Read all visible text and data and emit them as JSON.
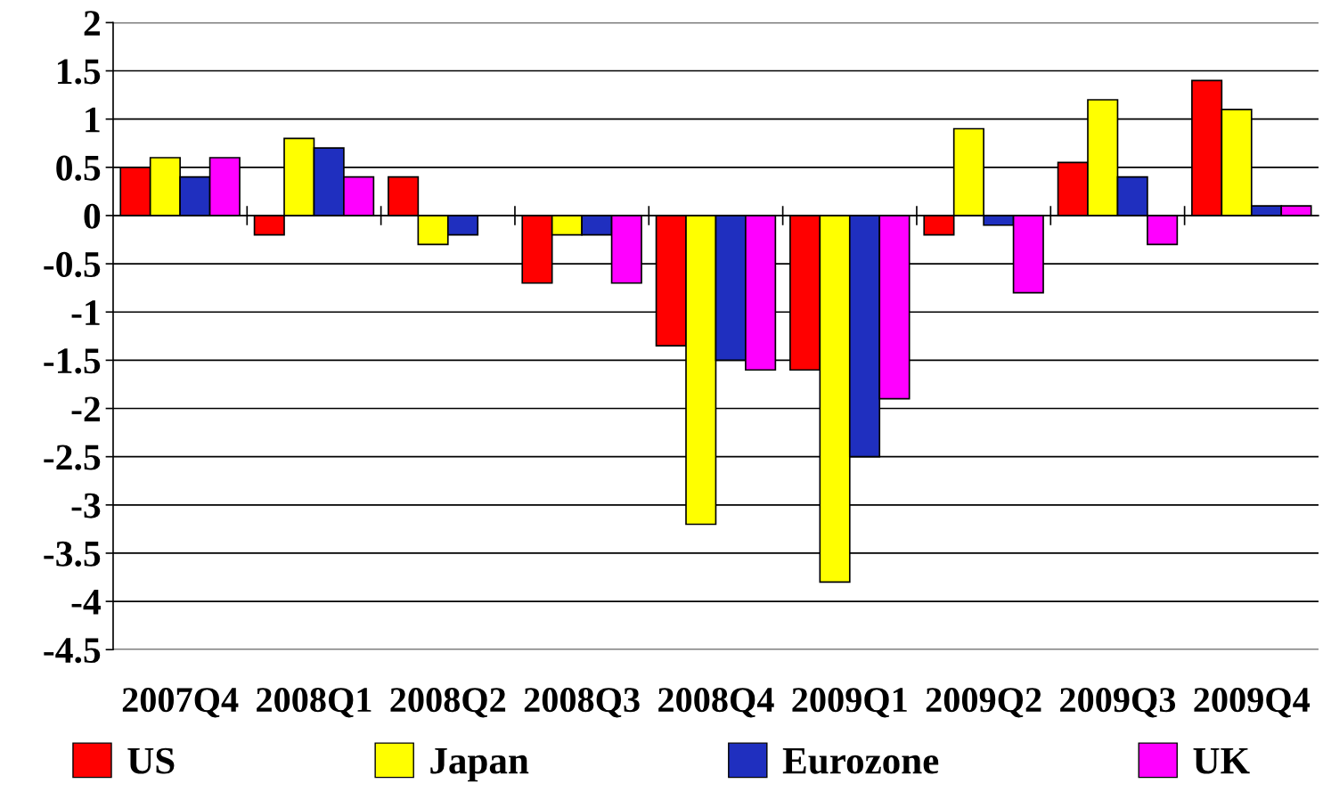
{
  "chart_data": {
    "type": "bar",
    "categories": [
      "2007Q4",
      "2008Q1",
      "2008Q2",
      "2008Q3",
      "2008Q4",
      "2009Q1",
      "2009Q2",
      "2009Q3",
      "2009Q4"
    ],
    "series": [
      {
        "name": "US",
        "color": "#ff0000",
        "values": [
          0.5,
          -0.2,
          0.4,
          -0.7,
          -1.35,
          -1.6,
          -0.2,
          0.55,
          1.4
        ]
      },
      {
        "name": "Japan",
        "color": "#ffff00",
        "values": [
          0.6,
          0.8,
          -0.3,
          -0.2,
          -3.2,
          -3.8,
          0.9,
          1.2,
          1.1
        ]
      },
      {
        "name": "Eurozone",
        "color": "#1f2fbf",
        "values": [
          0.4,
          0.7,
          -0.2,
          -0.2,
          -1.5,
          -2.5,
          -0.1,
          0.4,
          0.1
        ]
      },
      {
        "name": "UK",
        "color": "#ff00ff",
        "values": [
          0.6,
          0.4,
          null,
          -0.7,
          -1.6,
          -1.9,
          -0.8,
          -0.3,
          0.1
        ]
      }
    ],
    "ylim": [
      -4.5,
      2
    ],
    "yticks": [
      -4.5,
      -4,
      -3.5,
      -3,
      -2.5,
      -2,
      -1.5,
      -1,
      -0.5,
      0,
      0.5,
      1,
      1.5,
      2
    ],
    "grid": "y",
    "legend": "bottom"
  }
}
